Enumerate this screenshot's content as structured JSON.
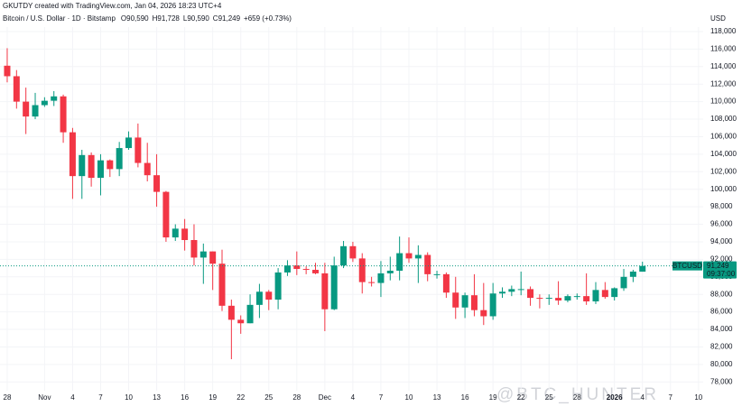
{
  "chart_data": {
    "type": "candlestick",
    "credit": "GKUTDY created with TradingView.com, Jan 04, 2026 18:23 UTC+4",
    "title": "Bitcoin / U.S. Dollar · 1D · Bitstamp",
    "header_values": [
      {
        "key": "O",
        "label": "90,590"
      },
      {
        "key": "H",
        "label": "91,728"
      },
      {
        "key": "L",
        "label": "90,590"
      },
      {
        "key": "C",
        "label": "91,249"
      }
    ],
    "change": "+659 (+0.73%)",
    "ylabel": "USD",
    "watermark": "@BTC_HUNTER",
    "up_color": "#089981",
    "down_color": "#f23645",
    "grid": true,
    "categories": [
      "28",
      null,
      null,
      null,
      "Nov",
      null,
      null,
      "4",
      null,
      null,
      "7",
      null,
      null,
      "10",
      null,
      null,
      "13",
      null,
      null,
      "16",
      null,
      null,
      "19",
      null,
      null,
      "22",
      null,
      null,
      "25",
      null,
      null,
      "28",
      null,
      null,
      "Dec",
      null,
      null,
      "4",
      null,
      null,
      "7",
      null,
      null,
      "10",
      null,
      null,
      "13",
      null,
      null,
      "16",
      null,
      null,
      "19",
      null,
      null,
      "22",
      null,
      null,
      "25",
      null,
      null,
      "28",
      null,
      null,
      null,
      "2026",
      null,
      null,
      "4",
      null,
      null,
      "7",
      null,
      null,
      "10"
    ],
    "open": [
      114100,
      112900,
      110000,
      108300,
      109600,
      110100,
      110600,
      106500,
      101500,
      103900,
      101300,
      103300,
      102300,
      104700,
      105900,
      103000,
      101600,
      99700,
      94500,
      95500,
      94200,
      92200,
      92900,
      91500,
      86700,
      85100,
      84700,
      86800,
      88300,
      87400,
      90500,
      91300,
      90900,
      90800,
      90400,
      86300,
      91300,
      93500,
      92100,
      89400,
      89300,
      90400,
      90700,
      92700,
      92100,
      92500,
      90300,
      90300,
      88200,
      86500,
      87900,
      86200,
      85500,
      88100,
      88300,
      88600,
      88600,
      87600,
      87500,
      87600,
      87300,
      87800,
      87800,
      87200,
      88500,
      87700,
      88700,
      90000,
      90590,
      null,
      null,
      null,
      null,
      null,
      null
    ],
    "high": [
      116100,
      113600,
      111600,
      111000,
      110500,
      111200,
      110800,
      107000,
      104500,
      104200,
      104000,
      103400,
      105400,
      106600,
      107500,
      105300,
      104000,
      99800,
      96000,
      96600,
      96000,
      93800,
      92900,
      93100,
      87400,
      85600,
      88000,
      89200,
      88500,
      91000,
      91900,
      92900,
      91200,
      91600,
      91600,
      92300,
      94100,
      94000,
      92700,
      90000,
      91800,
      92300,
      94600,
      94500,
      93600,
      92800,
      90700,
      90500,
      90000,
      88200,
      90300,
      89300,
      89300,
      88800,
      89000,
      90600,
      88900,
      88000,
      88000,
      89500,
      88000,
      88100,
      90400,
      89400,
      89400,
      88800,
      90900,
      90800,
      91728,
      null,
      null,
      null,
      null,
      null,
      null
    ],
    "low": [
      112200,
      109200,
      106300,
      108000,
      109400,
      109500,
      105300,
      98900,
      98900,
      100300,
      99300,
      101400,
      101500,
      104500,
      102500,
      100900,
      98000,
      94000,
      94100,
      93000,
      91300,
      89200,
      88500,
      86100,
      80600,
      83500,
      84700,
      85300,
      86200,
      86300,
      90100,
      90200,
      90300,
      90300,
      83800,
      86200,
      91000,
      91700,
      88100,
      88900,
      87700,
      89600,
      89600,
      91600,
      89300,
      89500,
      89800,
      87600,
      85200,
      85300,
      85500,
      84500,
      85100,
      87600,
      87800,
      87900,
      86700,
      86400,
      86800,
      86800,
      87100,
      87400,
      86800,
      86900,
      87500,
      87300,
      88400,
      89400,
      90590,
      null,
      null,
      null,
      null,
      null,
      null
    ],
    "close": [
      112900,
      110000,
      108300,
      109600,
      110100,
      110600,
      106500,
      101500,
      103900,
      101300,
      103300,
      102300,
      104700,
      105900,
      103000,
      101600,
      99700,
      94500,
      95500,
      94200,
      92200,
      92900,
      91500,
      86700,
      85100,
      84700,
      86800,
      88300,
      87400,
      90500,
      91300,
      90900,
      90800,
      90400,
      86300,
      91300,
      93500,
      92100,
      89400,
      89300,
      90400,
      90700,
      92700,
      92100,
      92500,
      90300,
      90300,
      88200,
      86500,
      87900,
      86200,
      85500,
      88100,
      88300,
      88600,
      88600,
      87600,
      87500,
      87600,
      87300,
      87800,
      87800,
      87200,
      88500,
      87700,
      88700,
      90000,
      90600,
      91249,
      null,
      null,
      null,
      null,
      null,
      null
    ],
    "ylim": [
      77000,
      121600
    ],
    "yticks": [
      {
        "value": 78000,
        "label": "78,000"
      },
      {
        "value": 80000,
        "label": "80,000"
      },
      {
        "value": 82000,
        "label": "82,000"
      },
      {
        "value": 84000,
        "label": "84,000"
      },
      {
        "value": 86000,
        "label": "86,000"
      },
      {
        "value": 88000,
        "label": "88,000"
      },
      {
        "value": 90000,
        "label": "90,000"
      },
      {
        "value": 92000,
        "label": "92,000"
      },
      {
        "value": 94000,
        "label": "94,000"
      },
      {
        "value": 96000,
        "label": "96,000"
      },
      {
        "value": 98000,
        "label": "98,000"
      },
      {
        "value": 100000,
        "label": "100,000"
      },
      {
        "value": 102000,
        "label": "102,000"
      },
      {
        "value": 104000,
        "label": "104,000"
      },
      {
        "value": 106000,
        "label": "106,000"
      },
      {
        "value": 108000,
        "label": "108,000"
      },
      {
        "value": 110000,
        "label": "110,000"
      },
      {
        "value": 112000,
        "label": "112,000"
      },
      {
        "value": 114000,
        "label": "114,000"
      },
      {
        "value": 116000,
        "label": "116,000"
      },
      {
        "value": 118000,
        "label": "118,000"
      }
    ],
    "price_tag": {
      "symbol": "BTCUSD",
      "value": 91249,
      "label": "91,249",
      "countdown": "09:37:00"
    }
  }
}
